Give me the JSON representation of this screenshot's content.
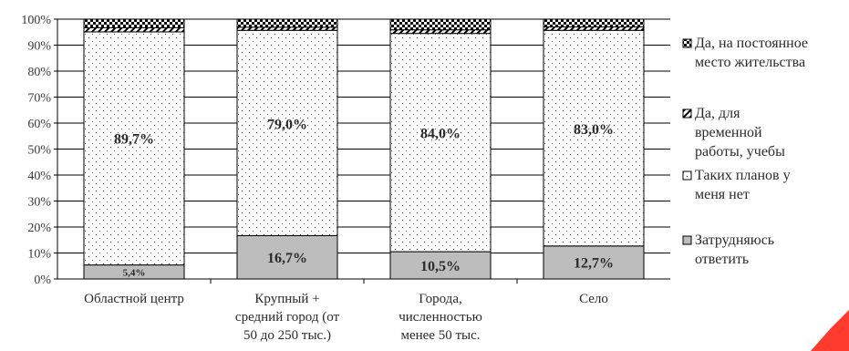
{
  "chart_data": {
    "type": "bar",
    "stacked": true,
    "percent_stacked": true,
    "title": "",
    "xlabel": "",
    "ylabel": "",
    "ylim": [
      0,
      100
    ],
    "y_ticks": [
      "0%",
      "10%",
      "20%",
      "30%",
      "40%",
      "50%",
      "60%",
      "70%",
      "80%",
      "90%",
      "100%"
    ],
    "grid": true,
    "legend_position": "right",
    "categories": [
      [
        "Областной центр"
      ],
      [
        "Крупный +",
        "средний город (от",
        "50 до 250 тыс.)"
      ],
      [
        "Города,",
        "численностью",
        "менее 50 тыс."
      ],
      [
        "Село"
      ]
    ],
    "series": [
      {
        "name": "Затрудняюсь ответить",
        "legend_lines": [
          "Затрудняюсь",
          "ответить"
        ],
        "fill": "gray",
        "values": [
          5.4,
          16.7,
          10.5,
          12.7
        ],
        "labels": [
          "5,4%",
          "16,7%",
          "10,5%",
          "12,7%"
        ]
      },
      {
        "name": "Таких планов у меня нет",
        "legend_lines": [
          "Таких планов у",
          "меня нет"
        ],
        "fill": "dots",
        "values": [
          89.7,
          79.0,
          84.0,
          83.0
        ],
        "labels": [
          "89,7%",
          "79,0%",
          "84,0%",
          "83,0%"
        ]
      },
      {
        "name": "Да, для временной работы, учебы",
        "legend_lines": [
          "Да, для",
          "временной",
          "работы, учебы"
        ],
        "fill": "diagonal",
        "values": [
          1.6,
          1.2,
          1.4,
          1.3
        ],
        "labels": [
          "",
          "",
          "",
          ""
        ]
      },
      {
        "name": "Да, на постоянное место жительства",
        "legend_lines": [
          "Да, на постоянное",
          "место жительства"
        ],
        "fill": "checker",
        "values": [
          3.3,
          3.1,
          4.1,
          3.0
        ],
        "labels": [
          "",
          "",
          "",
          ""
        ]
      }
    ],
    "legend_order": [
      3,
      2,
      1,
      0
    ]
  },
  "colors": {
    "gray_fill": "#bdbdbd",
    "dot_color": "#6b6b6b",
    "gridline": "#000000",
    "bar_border": "#000000",
    "corner_mark": "#ff3b2f"
  }
}
